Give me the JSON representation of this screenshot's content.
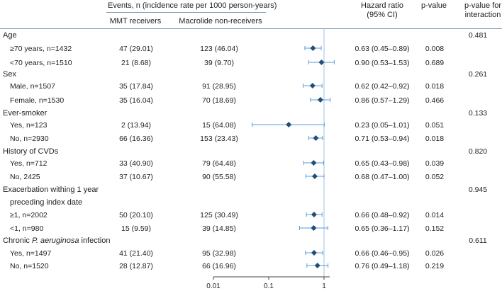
{
  "header": {
    "events_title": "Events, n (incidence rate per 1000 person-years)",
    "col_mmt": "MMT receivers",
    "col_non": "Macrolide non-receivers",
    "hr_line1": "Hazard ratio",
    "hr_line2": "(95% CI)",
    "pvalue": "p-value",
    "pint_line1": "p-value for",
    "pint_line2": "interaction"
  },
  "groups": [
    {
      "label": "Age",
      "p_interaction": "0.481",
      "rows": [
        {
          "label": "≥70 years, n=1432",
          "mmt": "47 (29.01)",
          "non": "123 (46.04)",
          "hr_text": "0.63 (0.45–0.89)",
          "p": "0.008"
        },
        {
          "label": "<70 years, n=1510",
          "mmt": "21 (8.68)",
          "non": "39 (9.70)",
          "hr_text": "0.90 (0.53–1.53)",
          "p": "0.689"
        }
      ]
    },
    {
      "label": "Sex",
      "p_interaction": "0.261",
      "rows": [
        {
          "label": "Male, n=1507",
          "mmt": "35 (17.84)",
          "non": "91 (28.95)",
          "hr_text": "0.62 (0.42–0.92)",
          "p": "0.018"
        },
        {
          "label": "Female, n=1530",
          "mmt": "35 (16.04)",
          "non": "70 (18.69)",
          "hr_text": "0.86 (0.57–1.29)",
          "p": "0.466"
        }
      ]
    },
    {
      "label": "Ever-smoker",
      "p_interaction": "0.133",
      "rows": [
        {
          "label": "Yes, n=123",
          "mmt": "2 (13.94)",
          "non": "15 (64.08)",
          "hr_text": "0.23 (0.05–1.01)",
          "p": "0.051"
        },
        {
          "label": "No, n=2930",
          "mmt": "66 (16.36)",
          "non": "153 (23.43)",
          "hr_text": "0.71 (0.53–0.94)",
          "p": "0.018"
        }
      ]
    },
    {
      "label": "History of CVDs",
      "p_interaction": "0.820",
      "rows": [
        {
          "label": "Yes, n=712",
          "mmt": "33 (40.90)",
          "non": "79 (64.48)",
          "hr_text": "0.65 (0.43–0.98)",
          "p": "0.039"
        },
        {
          "label": "No, 2425",
          "mmt": "37 (10.67)",
          "non": "90 (55.58)",
          "hr_text": "0.68 (0.47–1.00)",
          "p": "0.052"
        }
      ]
    },
    {
      "label": "Exacerbation withing 1 year",
      "label2": "preceding index date",
      "p_interaction": "0.945",
      "rows": [
        {
          "label": "≥1, n=2002",
          "mmt": "50 (20.10)",
          "non": "125 (30.49)",
          "hr_text": "0.66 (0.48–0.92)",
          "p": "0.014"
        },
        {
          "label": "<1, n=980",
          "mmt": "15 (9.59)",
          "non": "39 (14.85)",
          "hr_text": "0.65 (0.36–1.17)",
          "p": "0.152"
        }
      ]
    },
    {
      "label": "Chronic ",
      "label_italic": "P. aeruginosa",
      "label_after": " infection",
      "p_interaction": "0.611",
      "rows": [
        {
          "label": "Yes, n=1497",
          "mmt": "41 (21.40)",
          "non": "95 (32.98)",
          "hr_text": "0.66 (0.46–0.95)",
          "p": "0.026"
        },
        {
          "label": "No, n=1520",
          "mmt": "28 (12.87)",
          "non": "66 (16.96)",
          "hr_text": "0.76 (0.49–1.18)",
          "p": "0.219"
        }
      ]
    }
  ],
  "chart_data": {
    "type": "forest",
    "xscale": "log",
    "xlim": [
      0.01,
      1.6
    ],
    "ticks": [
      0.01,
      0.1,
      1
    ],
    "tick_labels": [
      "0.01",
      "0.1",
      "1"
    ],
    "reference_line": 1,
    "series": [
      {
        "name": "≥70 years, n=1432",
        "hr": 0.63,
        "lo": 0.45,
        "hi": 0.89
      },
      {
        "name": "<70 years, n=1510",
        "hr": 0.9,
        "lo": 0.53,
        "hi": 1.53
      },
      {
        "name": "Male, n=1507",
        "hr": 0.62,
        "lo": 0.42,
        "hi": 0.92
      },
      {
        "name": "Female, n=1530",
        "hr": 0.86,
        "lo": 0.57,
        "hi": 1.29
      },
      {
        "name": "Yes, n=123",
        "hr": 0.23,
        "lo": 0.05,
        "hi": 1.01
      },
      {
        "name": "No, n=2930",
        "hr": 0.71,
        "lo": 0.53,
        "hi": 0.94
      },
      {
        "name": "Yes, n=712",
        "hr": 0.65,
        "lo": 0.43,
        "hi": 0.98
      },
      {
        "name": "No, 2425",
        "hr": 0.68,
        "lo": 0.47,
        "hi": 1.0
      },
      {
        "name": "≥1, n=2002",
        "hr": 0.66,
        "lo": 0.48,
        "hi": 0.92
      },
      {
        "name": "<1, n=980",
        "hr": 0.65,
        "lo": 0.36,
        "hi": 1.17
      },
      {
        "name": "Yes, n=1497",
        "hr": 0.66,
        "lo": 0.46,
        "hi": 0.95
      },
      {
        "name": "No, n=1520",
        "hr": 0.76,
        "lo": 0.49,
        "hi": 1.18
      }
    ],
    "colors": {
      "marker": "#1f4e79",
      "ci": "#5b9bd5",
      "refline": "#9dc3e6",
      "rule": "#7a9bb8"
    }
  }
}
